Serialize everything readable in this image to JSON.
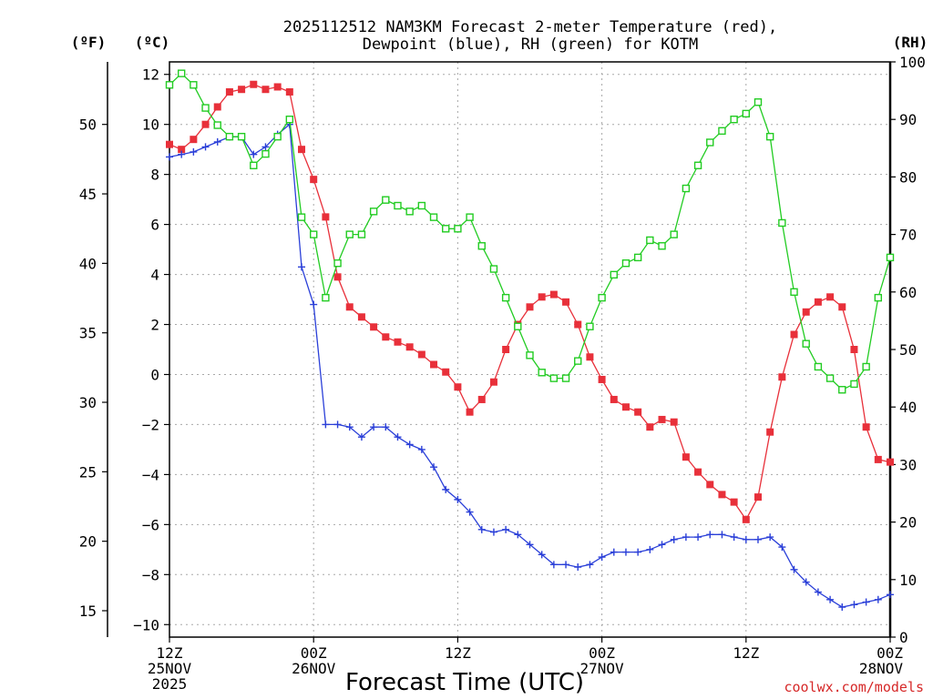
{
  "chart_data": {
    "type": "line",
    "title_lines": [
      "2025112512 NAM3KM Forecast 2-meter Temperature (red),",
      "Dewpoint (blue), RH (green) for KOTM"
    ],
    "xlabel": "Forecast Time (UTC)",
    "credit": "coolwx.com/models",
    "unit_labels": {
      "fahrenheit": "(ºF)",
      "celsius": "(ºC)",
      "rh": "(RH)"
    },
    "x_hours_range": [
      0,
      60
    ],
    "x_ticks": [
      {
        "hour": 0,
        "lines": [
          "12Z",
          "25NOV",
          "2025"
        ]
      },
      {
        "hour": 12,
        "lines": [
          "00Z",
          "26NOV"
        ]
      },
      {
        "hour": 24,
        "lines": [
          "12Z"
        ]
      },
      {
        "hour": 36,
        "lines": [
          "00Z",
          "27NOV"
        ]
      },
      {
        "hour": 48,
        "lines": [
          "12Z"
        ]
      },
      {
        "hour": 60,
        "lines": [
          "00Z",
          "28NOV"
        ]
      }
    ],
    "axes": {
      "celsius": {
        "range": [
          -10.5,
          12.5
        ],
        "ticks": [
          -10,
          -8,
          -6,
          -4,
          -2,
          0,
          2,
          4,
          6,
          8,
          10,
          12
        ]
      },
      "fahrenheit": {
        "ticks": [
          15,
          20,
          25,
          30,
          35,
          40,
          45,
          50
        ]
      },
      "rh": {
        "range": [
          0,
          100
        ],
        "ticks": [
          0,
          10,
          20,
          30,
          40,
          50,
          60,
          70,
          80,
          90,
          100
        ]
      }
    },
    "grid": true,
    "series": [
      {
        "name": "2-meter Temperature",
        "color": "#e8303a",
        "marker": "filled-square",
        "axis": "celsius",
        "hours": [
          0,
          1,
          2,
          3,
          4,
          5,
          6,
          7,
          8,
          9,
          10,
          11,
          12,
          13,
          14,
          15,
          16,
          17,
          18,
          19,
          20,
          21,
          22,
          23,
          24,
          25,
          26,
          27,
          28,
          29,
          30,
          31,
          32,
          33,
          34,
          35,
          36,
          37,
          38,
          39,
          40,
          41,
          42,
          43,
          44,
          45,
          46,
          47,
          48,
          49,
          50,
          51,
          52,
          53,
          54,
          55,
          56,
          57,
          58,
          59,
          60
        ],
        "values": [
          9.2,
          9.0,
          9.4,
          10.0,
          10.7,
          11.3,
          11.4,
          11.6,
          11.4,
          11.5,
          11.3,
          9.0,
          7.8,
          6.3,
          3.9,
          2.7,
          2.3,
          1.9,
          1.5,
          1.3,
          1.1,
          0.8,
          0.4,
          0.1,
          -0.5,
          -1.5,
          -1.0,
          -0.3,
          1.0,
          2.0,
          2.7,
          3.1,
          3.2,
          2.9,
          2.0,
          0.7,
          -0.2,
          -1.0,
          -1.3,
          -1.5,
          -2.1,
          -1.8,
          -1.9,
          -3.3,
          -3.9,
          -4.4,
          -4.8,
          -5.1,
          -5.8,
          -4.9,
          -2.3,
          -0.1,
          1.6,
          2.5,
          2.9,
          3.1,
          2.7,
          1.0,
          -2.1,
          -3.4,
          -3.5
        ]
      },
      {
        "name": "Dewpoint",
        "color": "#2a3fd8",
        "marker": "plus",
        "axis": "celsius",
        "hours": [
          0,
          1,
          2,
          3,
          4,
          5,
          6,
          7,
          8,
          9,
          10,
          11,
          12,
          13,
          14,
          15,
          16,
          17,
          18,
          19,
          20,
          21,
          22,
          23,
          24,
          25,
          26,
          27,
          28,
          29,
          30,
          31,
          32,
          33,
          34,
          35,
          36,
          37,
          38,
          39,
          40,
          41,
          42,
          43,
          44,
          45,
          46,
          47,
          48,
          49,
          50,
          51,
          52,
          53,
          54,
          55,
          56,
          57,
          58,
          59,
          60
        ],
        "values": [
          8.7,
          8.8,
          8.9,
          9.1,
          9.3,
          9.5,
          9.5,
          8.8,
          9.1,
          9.6,
          10.0,
          4.3,
          2.8,
          -2.0,
          -2.0,
          -2.1,
          -2.5,
          -2.1,
          -2.1,
          -2.5,
          -2.8,
          -3.0,
          -3.7,
          -4.6,
          -5.0,
          -5.5,
          -6.2,
          -6.3,
          -6.2,
          -6.4,
          -6.8,
          -7.2,
          -7.6,
          -7.6,
          -7.7,
          -7.6,
          -7.3,
          -7.1,
          -7.1,
          -7.1,
          -7.0,
          -6.8,
          -6.6,
          -6.5,
          -6.5,
          -6.4,
          -6.4,
          -6.5,
          -6.6,
          -6.6,
          -6.5,
          -6.9,
          -7.8,
          -8.3,
          -8.7,
          -9.0,
          -9.3,
          -9.2,
          -9.1,
          -9.0,
          -8.8
        ]
      },
      {
        "name": "RH",
        "color": "#22cc22",
        "marker": "open-square",
        "axis": "rh",
        "hours": [
          0,
          1,
          2,
          3,
          4,
          5,
          6,
          7,
          8,
          9,
          10,
          11,
          12,
          13,
          14,
          15,
          16,
          17,
          18,
          19,
          20,
          21,
          22,
          23,
          24,
          25,
          26,
          27,
          28,
          29,
          30,
          31,
          32,
          33,
          34,
          35,
          36,
          37,
          38,
          39,
          40,
          41,
          42,
          43,
          44,
          45,
          46,
          47,
          48,
          49,
          50,
          51,
          52,
          53,
          54,
          55,
          56,
          57,
          58,
          59,
          60
        ],
        "values": [
          96,
          98,
          96,
          92,
          89,
          87,
          87,
          82,
          84,
          87,
          90,
          73,
          70,
          59,
          65,
          70,
          70,
          74,
          76,
          75,
          74,
          75,
          73,
          71,
          71,
          73,
          68,
          64,
          59,
          54,
          49,
          46,
          45,
          45,
          48,
          54,
          59,
          63,
          65,
          66,
          69,
          68,
          70,
          78,
          82,
          86,
          88,
          90,
          91,
          93,
          87,
          72,
          60,
          51,
          47,
          45,
          43,
          44,
          47,
          59,
          66
        ]
      }
    ]
  }
}
